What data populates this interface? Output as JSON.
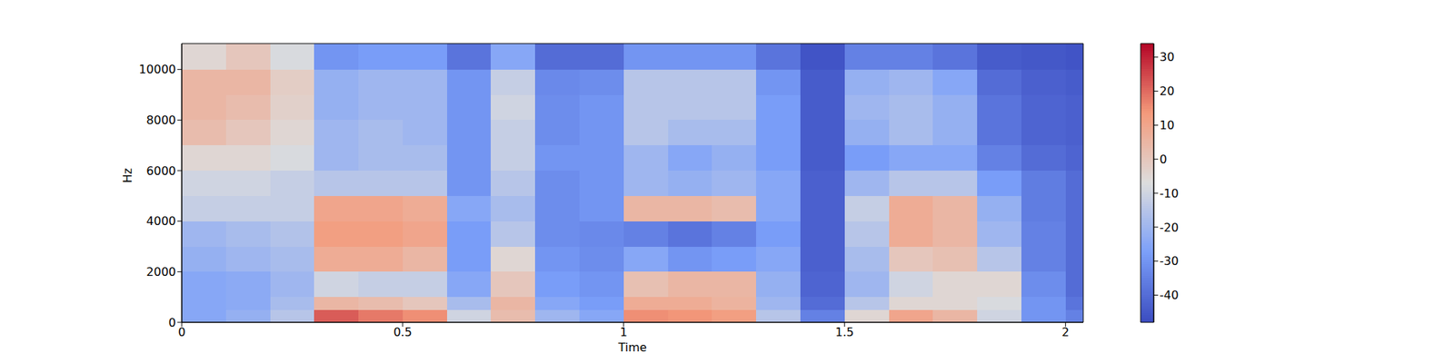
{
  "chart_data": {
    "type": "heatmap",
    "x_label": "Time",
    "y_label": "Hz",
    "color": "coolwarm",
    "xlim": [
      0,
      2.04
    ],
    "ylim": [
      0,
      11025
    ],
    "xticks": [
      0,
      0.5,
      1,
      1.5,
      2
    ],
    "yticks": [
      0,
      2000,
      4000,
      6000,
      8000,
      10000
    ],
    "x_bins": [
      0,
      0.1,
      0.2,
      0.3,
      0.4,
      0.5,
      0.6,
      0.7,
      0.8,
      0.9,
      1.0,
      1.1,
      1.2,
      1.3,
      1.4,
      1.5,
      1.6,
      1.7,
      1.8,
      1.9,
      2.0,
      2.04
    ],
    "y_bins": [
      0,
      500,
      1000,
      2000,
      3000,
      4000,
      5000,
      6000,
      7000,
      8000,
      9000,
      10000,
      11025
    ],
    "cells": [
      [
        -25,
        -22,
        -15,
        22,
        18,
        15,
        -10,
        3,
        -20,
        -25,
        15,
        14,
        12,
        -15,
        -35,
        -5,
        10,
        5,
        -10,
        -30,
        -35
      ],
      [
        -25,
        -24,
        -18,
        5,
        3,
        0,
        -18,
        5,
        -25,
        -28,
        8,
        8,
        6,
        -20,
        -40,
        -15,
        -5,
        -5,
        -8,
        -30,
        -38
      ],
      [
        -25,
        -24,
        -20,
        -10,
        -12,
        -12,
        -25,
        0,
        -28,
        -30,
        2,
        5,
        5,
        -22,
        -42,
        -20,
        -10,
        -5,
        -5,
        -32,
        -40
      ],
      [
        -22,
        -20,
        -18,
        8,
        8,
        5,
        -28,
        -5,
        -30,
        -32,
        -25,
        -30,
        -28,
        -25,
        -43,
        -18,
        0,
        2,
        -15,
        -35,
        -40
      ],
      [
        -20,
        -18,
        -16,
        12,
        12,
        10,
        -28,
        -15,
        -32,
        -33,
        -35,
        -38,
        -35,
        -28,
        -43,
        -15,
        8,
        5,
        -20,
        -35,
        -40
      ],
      [
        -12,
        -12,
        -12,
        10,
        10,
        8,
        -25,
        -18,
        -32,
        -30,
        5,
        5,
        3,
        -25,
        -43,
        -12,
        8,
        5,
        -22,
        -36,
        -40
      ],
      [
        -10,
        -10,
        -12,
        -15,
        -15,
        -15,
        -30,
        -15,
        -32,
        -30,
        -20,
        -22,
        -20,
        -25,
        -43,
        -20,
        -15,
        -15,
        -28,
        -36,
        -40
      ],
      [
        -5,
        -5,
        -8,
        -20,
        -18,
        -18,
        -30,
        -12,
        -30,
        -30,
        -20,
        -25,
        -22,
        -28,
        -44,
        -28,
        -25,
        -25,
        -35,
        -40,
        -42
      ],
      [
        3,
        0,
        -5,
        -20,
        -18,
        -20,
        -30,
        -12,
        -32,
        -30,
        -15,
        -18,
        -18,
        -28,
        -44,
        -22,
        -18,
        -22,
        -38,
        -42,
        -43
      ],
      [
        5,
        3,
        -3,
        -22,
        -20,
        -20,
        -30,
        -10,
        -32,
        -30,
        -15,
        -15,
        -15,
        -28,
        -44,
        -20,
        -18,
        -22,
        -38,
        -42,
        -43
      ],
      [
        5,
        5,
        -2,
        -22,
        -20,
        -20,
        -30,
        -12,
        -33,
        -32,
        -15,
        -15,
        -15,
        -30,
        -44,
        -22,
        -20,
        -25,
        -40,
        -43,
        -44
      ],
      [
        -5,
        0,
        -8,
        -30,
        -28,
        -28,
        -38,
        -25,
        -40,
        -40,
        -30,
        -30,
        -30,
        -38,
        -46,
        -35,
        -35,
        -38,
        -44,
        -45,
        -46
      ]
    ],
    "colorbar": {
      "range": [
        -48,
        34
      ],
      "ticks": [
        -40,
        -30,
        -20,
        -10,
        0,
        10,
        20,
        30
      ]
    }
  }
}
